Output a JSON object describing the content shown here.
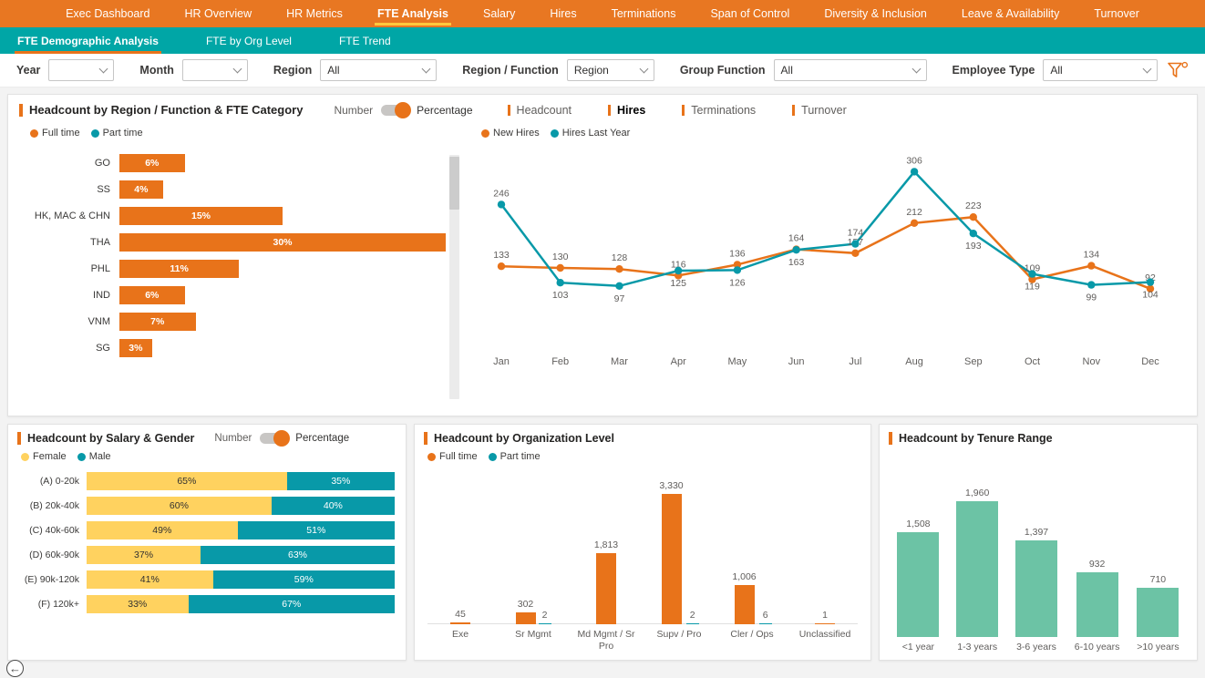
{
  "colors": {
    "orange": "#E8731A",
    "teal": "#0899A8",
    "yellow": "#FFD25F",
    "green": "#6CC3A5",
    "nav_orange": "#E87722",
    "nav_teal": "#00A6A6",
    "active_underline": "#FFC83D"
  },
  "top_nav": {
    "items": [
      "Exec Dashboard",
      "HR Overview",
      "HR Metrics",
      "FTE Analysis",
      "Salary",
      "Hires",
      "Terminations",
      "Span of Control",
      "Diversity & Inclusion",
      "Leave & Availability",
      "Turnover"
    ],
    "active": "FTE Analysis",
    "active_index": 3
  },
  "sub_nav": {
    "items": [
      "FTE Demographic Analysis",
      "FTE by Org Level",
      "FTE Trend"
    ],
    "active": "FTE Demographic Analysis",
    "active_index": 0
  },
  "filters": [
    {
      "label": "Year",
      "value": ""
    },
    {
      "label": "Month",
      "value": ""
    },
    {
      "label": "Region",
      "value": "All"
    },
    {
      "label": "Region / Function",
      "value": "Region"
    },
    {
      "label": "Group Function",
      "value": "All"
    },
    {
      "label": "Employee Type",
      "value": "All"
    }
  ],
  "main_card": {
    "title": "Headcount by Region / Function & FTE Category",
    "toggle": {
      "left": "Number",
      "right": "Percentage",
      "selected": "Percentage"
    },
    "tabs": [
      {
        "label": "Headcount",
        "active": false
      },
      {
        "label": "Hires",
        "active": true
      },
      {
        "label": "Terminations",
        "active": false
      },
      {
        "label": "Turnover",
        "active": false
      }
    ],
    "legend": [
      {
        "label": "Full time",
        "color": "#E8731A"
      },
      {
        "label": "Part time",
        "color": "#0899A8"
      }
    ]
  },
  "salary_card": {
    "title": "Headcount by Salary & Gender",
    "toggle": {
      "left": "Number",
      "right": "Percentage",
      "selected": "Percentage"
    },
    "legend": [
      {
        "label": "Female",
        "color": "#FFD25F"
      },
      {
        "label": "Male",
        "color": "#0899A8"
      }
    ]
  },
  "org_card": {
    "title": "Headcount by Organization Level",
    "legend": [
      {
        "label": "Full time",
        "color": "#E8731A"
      },
      {
        "label": "Part time",
        "color": "#0899A8"
      }
    ]
  },
  "tenure_card": {
    "title": "Headcount by Tenure Range"
  },
  "chart_data": [
    {
      "id": "region_fte",
      "type": "bar",
      "orientation": "horizontal",
      "title": "Headcount by Region / Function & FTE Category (Percentage, Full time shown)",
      "categories": [
        "GO",
        "SS",
        "HK, MAC & CHN",
        "THA",
        "PHL",
        "IND",
        "VNM",
        "SG"
      ],
      "values": [
        6,
        4,
        15,
        30,
        11,
        6,
        7,
        3
      ],
      "unit": "%",
      "color": "#E8731A",
      "xlim": [
        0,
        30
      ],
      "legend": [
        "Full time",
        "Part time"
      ]
    },
    {
      "id": "hires",
      "type": "line",
      "title": "Hires by Month",
      "x": [
        "Jan",
        "Feb",
        "Mar",
        "Apr",
        "May",
        "Jun",
        "Jul",
        "Aug",
        "Sep",
        "Oct",
        "Nov",
        "Dec"
      ],
      "series": [
        {
          "name": "New Hires",
          "color": "#E8731A",
          "values": [
            133,
            130,
            128,
            116,
            136,
            164,
            157,
            212,
            223,
            109,
            134,
            92
          ]
        },
        {
          "name": "Hires Last Year",
          "color": "#0899A8",
          "values": [
            246,
            103,
            97,
            125,
            126,
            163,
            174,
            306,
            193,
            119,
            99,
            104
          ]
        }
      ],
      "ylim": [
        0,
        340
      ],
      "grid": false,
      "legend_position": "top-left"
    },
    {
      "id": "salary_gender",
      "type": "bar",
      "subtype": "stacked-100",
      "orientation": "horizontal",
      "title": "Headcount by Salary & Gender (Percentage)",
      "categories": [
        "(A) 0-20k",
        "(B) 20k-40k",
        "(C) 40k-60k",
        "(D) 60k-90k",
        "(E) 90k-120k",
        "(F) 120k+"
      ],
      "series": [
        {
          "name": "Female",
          "color": "#FFD25F",
          "values": [
            65,
            60,
            49,
            37,
            41,
            33
          ]
        },
        {
          "name": "Male",
          "color": "#0899A8",
          "values": [
            35,
            40,
            51,
            63,
            59,
            67
          ]
        }
      ],
      "unit": "%"
    },
    {
      "id": "org_level",
      "type": "bar",
      "orientation": "vertical",
      "title": "Headcount by Organization Level",
      "categories": [
        "Exe",
        "Sr Mgmt",
        "Md Mgmt / Sr Pro",
        "Supv / Pro",
        "Cler / Ops",
        "Unclassified"
      ],
      "series": [
        {
          "name": "Full time",
          "color": "#E8731A",
          "values": [
            45,
            302,
            1813,
            3330,
            1006,
            1
          ],
          "labels": [
            "45",
            "302",
            "1,813",
            "3,330",
            "1,006",
            "1"
          ]
        },
        {
          "name": "Part time",
          "color": "#0899A8",
          "values": [
            0,
            2,
            0,
            2,
            6,
            0
          ],
          "labels": [
            "",
            "2",
            "",
            "2",
            "6",
            ""
          ]
        }
      ],
      "ylim": [
        0,
        3500
      ]
    },
    {
      "id": "tenure",
      "type": "bar",
      "orientation": "vertical",
      "title": "Headcount by Tenure Range",
      "categories": [
        "<1 year",
        "1-3 years",
        "3-6 years",
        "6-10 years",
        ">10 years"
      ],
      "values": [
        1508,
        1960,
        1397,
        932,
        710
      ],
      "labels": [
        "1,508",
        "1,960",
        "1,397",
        "932",
        "710"
      ],
      "color": "#6CC3A5",
      "ylim": [
        0,
        2000
      ]
    }
  ],
  "back_button": {
    "icon": "left-arrow"
  }
}
